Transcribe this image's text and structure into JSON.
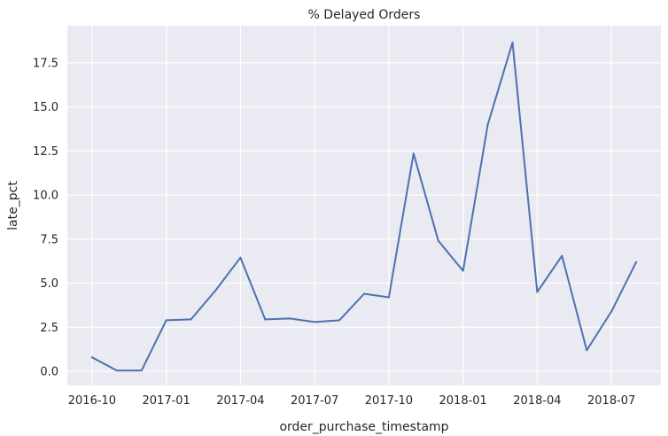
{
  "chart_data": {
    "type": "line",
    "title": "% Delayed Orders",
    "xlabel": "order_purchase_timestamp",
    "ylabel": "late_pct",
    "x_tick_labels": [
      "2016-10",
      "2017-01",
      "2017-04",
      "2017-07",
      "2017-10",
      "2018-01",
      "2018-04",
      "2018-07"
    ],
    "x_ticks": [
      "2016-10",
      "2017-01",
      "2017-04",
      "2017-07",
      "2017-10",
      "2018-01",
      "2018-04",
      "2018-07"
    ],
    "y_ticks": [
      0.0,
      2.5,
      5.0,
      7.5,
      10.0,
      12.5,
      15.0,
      17.5
    ],
    "y_tick_labels": [
      "0.0",
      "2.5",
      "5.0",
      "7.5",
      "10.0",
      "12.5",
      "15.0",
      "17.5"
    ],
    "xlim": [
      "2016-09",
      "2018-09"
    ],
    "ylim": [
      -0.8,
      19.6
    ],
    "grid": true,
    "series": [
      {
        "x": [
          "2016-10",
          "2016-11",
          "2016-12",
          "2017-01",
          "2017-02",
          "2017-03",
          "2017-04",
          "2017-05",
          "2017-06",
          "2017-07",
          "2017-08",
          "2017-09",
          "2017-10",
          "2017-11",
          "2017-12",
          "2018-01",
          "2018-02",
          "2018-03",
          "2018-04",
          "2018-05",
          "2018-06",
          "2018-07",
          "2018-08"
        ],
        "values": [
          0.8,
          0.05,
          0.05,
          2.9,
          2.95,
          4.6,
          6.45,
          2.95,
          3.0,
          2.8,
          2.9,
          4.4,
          4.2,
          12.35,
          7.4,
          5.7,
          14.0,
          18.65,
          4.5,
          6.55,
          1.2,
          3.4,
          6.2
        ],
        "color": "#4c72b0"
      }
    ],
    "colors": {
      "background": "#eaeaf2",
      "grid": "#ffffff",
      "line": "#4c72b0"
    }
  }
}
